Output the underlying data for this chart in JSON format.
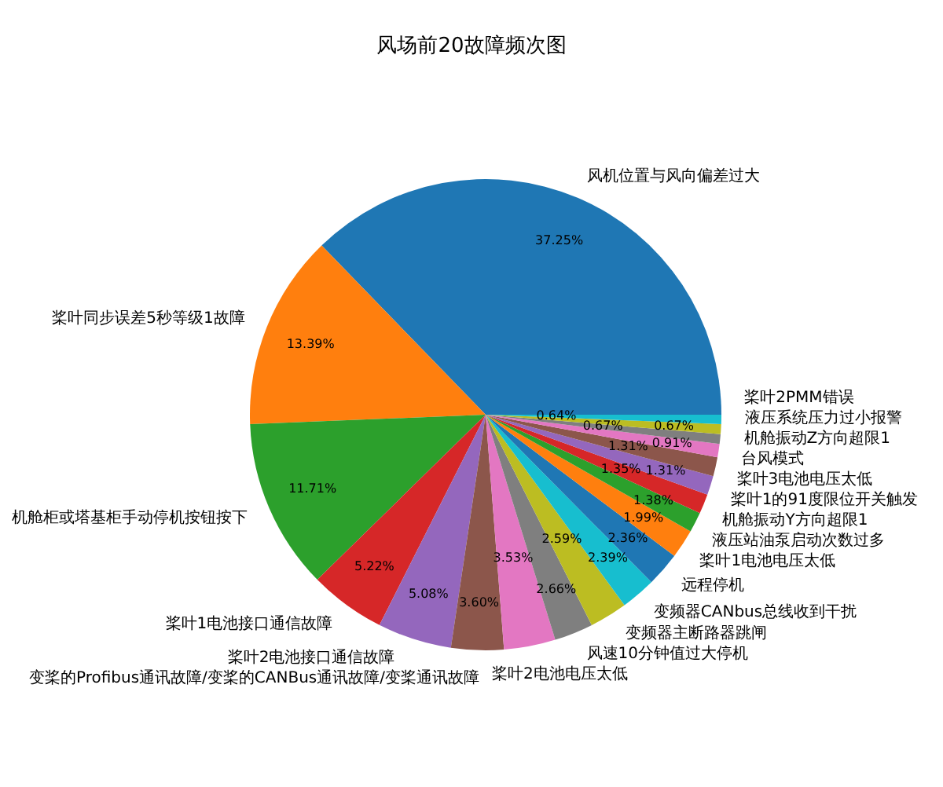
{
  "chart_data": {
    "type": "pie",
    "title": "风场前20故障频次图",
    "categories": [
      "风机位置与风向偏差过大",
      "桨叶同步误差5秒等级1故障",
      "机舱柜或塔基柜手动停机按钮按下",
      "桨叶1电池接口通信故障",
      "桨叶2电池接口通信故障",
      "变桨的Profibus通讯故障/变桨的CANBus通讯故障/变桨通讯故障",
      "桨叶2电池电压太低",
      "风速10分钟值过大停机",
      "变频器主断路器跳闸",
      "变频器CANbus总线收到干扰",
      "远程停机",
      "桨叶1电池电压太低",
      "液压站油泵启动次数过多",
      "机舱振动Y方向超限1",
      "桨叶1的91度限位开关触发",
      "桨叶3电池电压太低",
      "台风模式",
      "机舱振动Z方向超限1",
      "液压系统压力过小报警",
      "桨叶2PMM错误"
    ],
    "values": [
      37.25,
      13.39,
      11.71,
      5.22,
      5.08,
      3.6,
      3.53,
      2.66,
      2.59,
      2.39,
      2.36,
      1.99,
      1.38,
      1.35,
      1.31,
      1.31,
      0.91,
      0.67,
      0.67,
      0.64
    ],
    "value_labels": [
      "37.25%",
      "13.39%",
      "11.71%",
      "5.22%",
      "5.08%",
      "3.60%",
      "3.53%",
      "2.66%",
      "2.59%",
      "2.39%",
      "2.36%",
      "1.99%",
      "1.38%",
      "1.35%",
      "1.31%",
      "1.31%",
      "0.91%",
      "0.67%",
      "0.67%",
      "0.64%"
    ],
    "colors": [
      "#1f77b4",
      "#ff7f0e",
      "#2ca02c",
      "#d62728",
      "#9467bd",
      "#8c564b",
      "#e377c2",
      "#7f7f7f",
      "#bcbd22",
      "#17becf",
      "#1f77b4",
      "#ff7f0e",
      "#2ca02c",
      "#d62728",
      "#9467bd",
      "#8c564b",
      "#e377c2",
      "#7f7f7f",
      "#bcbd22",
      "#17becf"
    ]
  }
}
